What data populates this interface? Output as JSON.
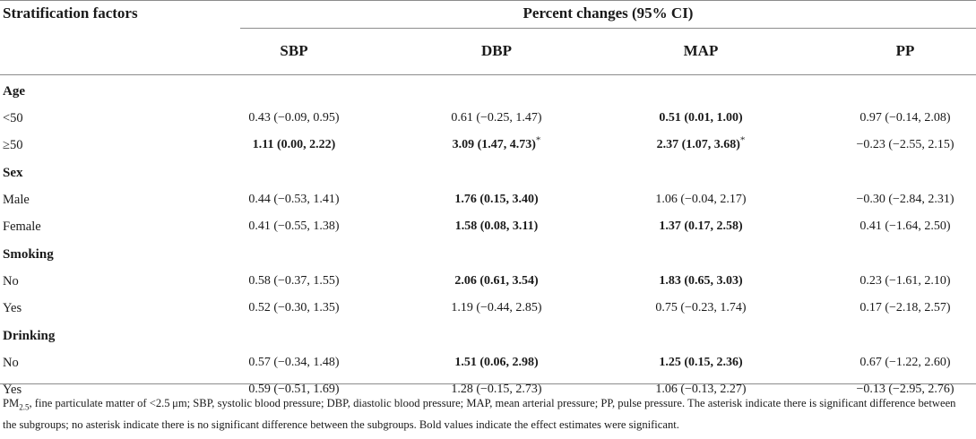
{
  "header": {
    "stub_label": "Stratification factors",
    "spanner_label": "Percent changes (95% CI)",
    "columns": [
      "SBP",
      "DBP",
      "MAP",
      "PP"
    ]
  },
  "groups": [
    {
      "label": "Age",
      "rows": [
        {
          "label": "<50",
          "cells": [
            {
              "text": "0.43 (−0.09, 0.95)",
              "bold": false,
              "asterisk": false
            },
            {
              "text": "0.61 (−0.25, 1.47)",
              "bold": false,
              "asterisk": false
            },
            {
              "text": "0.51 (0.01, 1.00)",
              "bold": true,
              "asterisk": false
            },
            {
              "text": "0.97 (−0.14, 2.08)",
              "bold": false,
              "asterisk": false
            }
          ]
        },
        {
          "label": "≥50",
          "cells": [
            {
              "text": "1.11 (0.00, 2.22)",
              "bold": true,
              "asterisk": false
            },
            {
              "text": "3.09 (1.47, 4.73)",
              "bold": true,
              "asterisk": true
            },
            {
              "text": "2.37 (1.07, 3.68)",
              "bold": true,
              "asterisk": true
            },
            {
              "text": "−0.23 (−2.55, 2.15)",
              "bold": false,
              "asterisk": false
            }
          ]
        }
      ]
    },
    {
      "label": "Sex",
      "rows": [
        {
          "label": "Male",
          "cells": [
            {
              "text": "0.44 (−0.53, 1.41)",
              "bold": false,
              "asterisk": false
            },
            {
              "text": "1.76 (0.15, 3.40)",
              "bold": true,
              "asterisk": false
            },
            {
              "text": "1.06 (−0.04, 2.17)",
              "bold": false,
              "asterisk": false
            },
            {
              "text": "−0.30 (−2.84, 2.31)",
              "bold": false,
              "asterisk": false
            }
          ]
        },
        {
          "label": "Female",
          "cells": [
            {
              "text": "0.41 (−0.55, 1.38)",
              "bold": false,
              "asterisk": false
            },
            {
              "text": "1.58 (0.08, 3.11)",
              "bold": true,
              "asterisk": false
            },
            {
              "text": "1.37 (0.17, 2.58)",
              "bold": true,
              "asterisk": false
            },
            {
              "text": "0.41 (−1.64, 2.50)",
              "bold": false,
              "asterisk": false
            }
          ]
        }
      ]
    },
    {
      "label": "Smoking",
      "rows": [
        {
          "label": "No",
          "cells": [
            {
              "text": "0.58 (−0.37, 1.55)",
              "bold": false,
              "asterisk": false
            },
            {
              "text": "2.06 (0.61, 3.54)",
              "bold": true,
              "asterisk": false
            },
            {
              "text": "1.83 (0.65, 3.03)",
              "bold": true,
              "asterisk": false
            },
            {
              "text": "0.23 (−1.61, 2.10)",
              "bold": false,
              "asterisk": false
            }
          ]
        },
        {
          "label": "Yes",
          "cells": [
            {
              "text": "0.52 (−0.30, 1.35)",
              "bold": false,
              "asterisk": false
            },
            {
              "text": "1.19 (−0.44, 2.85)",
              "bold": false,
              "asterisk": false
            },
            {
              "text": "0.75 (−0.23, 1.74)",
              "bold": false,
              "asterisk": false
            },
            {
              "text": "0.17 (−2.18, 2.57)",
              "bold": false,
              "asterisk": false
            }
          ]
        }
      ]
    },
    {
      "label": "Drinking",
      "rows": [
        {
          "label": "No",
          "cells": [
            {
              "text": "0.57 (−0.34, 1.48)",
              "bold": false,
              "asterisk": false
            },
            {
              "text": "1.51 (0.06, 2.98)",
              "bold": true,
              "asterisk": false
            },
            {
              "text": "1.25 (0.15, 2.36)",
              "bold": true,
              "asterisk": false
            },
            {
              "text": "0.67 (−1.22, 2.60)",
              "bold": false,
              "asterisk": false
            }
          ]
        },
        {
          "label": "Yes",
          "cells": [
            {
              "text": "0.59 (−0.51, 1.69)",
              "bold": false,
              "asterisk": false
            },
            {
              "text": "1.28 (−0.15, 2.73)",
              "bold": false,
              "asterisk": false
            },
            {
              "text": "1.06 (−0.13, 2.27)",
              "bold": false,
              "asterisk": false
            },
            {
              "text": "−0.13 (−2.95, 2.76)",
              "bold": false,
              "asterisk": false
            }
          ]
        }
      ]
    }
  ],
  "asterisk_symbol": "*",
  "footnote": {
    "pm_prefix": "PM",
    "pm_subscript": "2.5",
    "text": ", fine particulate matter of <2.5 μm; SBP, systolic blood pressure; DBP, diastolic blood pressure; MAP, mean arterial pressure; PP, pulse pressure. The asterisk indicate there is significant difference between the subgroups; no asterisk indicate there is no significant difference between the subgroups. Bold values indicate the effect estimates were significant."
  }
}
